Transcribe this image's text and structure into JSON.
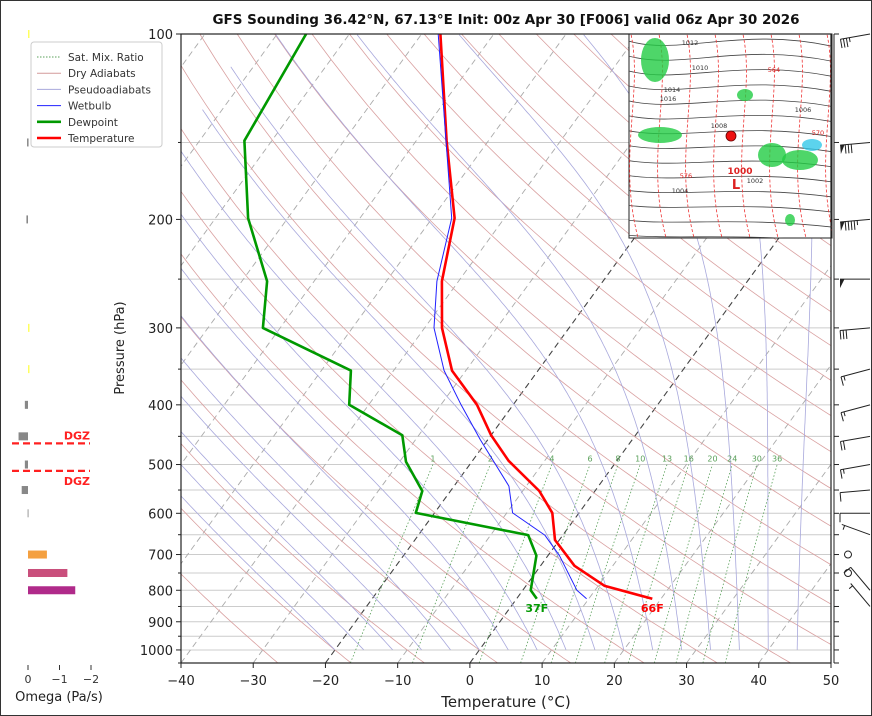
{
  "chart_data": {
    "type": "line",
    "subtype": "skew-t log-p",
    "title": "GFS Sounding 36.42°N, 67.13°E Init: 00z Apr 30 [F006] valid 06z Apr 30 2026",
    "xlabel": "Temperature (°C)",
    "ylabel": "Pressure (hPa)",
    "xlim": [
      -40,
      50
    ],
    "ylim": [
      1050,
      100
    ],
    "x_ticks": [
      "−40",
      "−30",
      "−20",
      "−10",
      "0",
      "10",
      "20",
      "30",
      "40",
      "50"
    ],
    "x_tick_values": [
      -40,
      -30,
      -20,
      -10,
      0,
      10,
      20,
      30,
      40,
      50
    ],
    "y_ticks": [
      100,
      200,
      300,
      400,
      500,
      600,
      700,
      800,
      900,
      1000
    ],
    "legend": {
      "placement": "top-left",
      "entries": [
        {
          "label": "Sat. Mix. Ratio",
          "color": "#5aa05a",
          "style": "dotted"
        },
        {
          "label": "Dry Adiabats",
          "color": "#d49a9a",
          "style": "solid"
        },
        {
          "label": "Pseudoadiabats",
          "color": "#a8a8dc",
          "style": "solid"
        },
        {
          "label": "Wetbulb",
          "color": "#2020ff",
          "style": "solid"
        },
        {
          "label": "Dewpoint",
          "color": "#009900",
          "style": "thick"
        },
        {
          "label": "Temperature",
          "color": "#ff0000",
          "style": "thick"
        }
      ]
    },
    "series": [
      {
        "name": "Temperature",
        "color": "#ff0000",
        "pressure": [
          100,
          149,
          199,
          252,
          300,
          352,
          400,
          448,
          493,
          552,
          599,
          663,
          730,
          787,
          826
        ],
        "values": [
          -67.4,
          -55.8,
          -46.9,
          -42.3,
          -37.6,
          -31.9,
          -25.0,
          -20.0,
          -15.0,
          -7.7,
          -3.7,
          -0.6,
          4.7,
          10.9,
          18.8
        ]
      },
      {
        "name": "Dewpoint",
        "color": "#009900",
        "pressure": [
          100,
          149,
          199,
          252,
          300,
          352,
          400,
          448,
          495,
          552,
          599,
          651,
          703,
          800,
          826
        ],
        "values": [
          -86.0,
          -83.8,
          -75.5,
          -66.5,
          -62.4,
          -45.9,
          -42.7,
          -32.3,
          -29.1,
          -23.9,
          -22.6,
          -4.8,
          -1.6,
          1.1,
          2.8
        ]
      },
      {
        "name": "Wetbulb",
        "color": "#2020ff",
        "pressure": [
          100,
          199,
          252,
          300,
          352,
          400,
          456,
          542,
          599,
          651,
          703,
          800,
          826
        ],
        "values": [
          -67.7,
          -47.3,
          -43.0,
          -38.7,
          -33.0,
          -27.2,
          -21.0,
          -12.4,
          -9.2,
          -2.5,
          1.6,
          7.5,
          9.7
        ]
      }
    ],
    "surface_labels": {
      "temperature": "66F",
      "dewpoint": "37F"
    },
    "mixing_ratio_labels": [
      "1",
      "2",
      "4",
      "6",
      "8",
      "10",
      "13",
      "16",
      "20",
      "24",
      "30",
      "36"
    ],
    "mixing_ratio_values": [
      1,
      2,
      4,
      6,
      8,
      10,
      13,
      16,
      20,
      24,
      30,
      36
    ],
    "wind_barbs": [
      {
        "pressure": 100,
        "speed_kt": 35,
        "direction_deg": 280
      },
      {
        "pressure": 150,
        "speed_kt": 80,
        "direction_deg": 275
      },
      {
        "pressure": 200,
        "speed_kt": 95,
        "direction_deg": 275
      },
      {
        "pressure": 250,
        "speed_kt": 50,
        "direction_deg": 270
      },
      {
        "pressure": 300,
        "speed_kt": 30,
        "direction_deg": 275
      },
      {
        "pressure": 350,
        "speed_kt": 15,
        "direction_deg": 285
      },
      {
        "pressure": 400,
        "speed_kt": 15,
        "direction_deg": 285
      },
      {
        "pressure": 450,
        "speed_kt": 20,
        "direction_deg": 280
      },
      {
        "pressure": 500,
        "speed_kt": 15,
        "direction_deg": 280
      },
      {
        "pressure": 550,
        "speed_kt": 10,
        "direction_deg": 275
      },
      {
        "pressure": 600,
        "speed_kt": 10,
        "direction_deg": 270
      },
      {
        "pressure": 650,
        "speed_kt": 5,
        "direction_deg": 250
      },
      {
        "pressure": 700,
        "speed_kt": 0,
        "direction_deg": 0
      },
      {
        "pressure": 750,
        "speed_kt": 0,
        "direction_deg": 0
      },
      {
        "pressure": 800,
        "speed_kt": 10,
        "direction_deg": 220
      },
      {
        "pressure": 850,
        "speed_kt": 5,
        "direction_deg": 220
      }
    ],
    "omega": {
      "xlabel": "Omega (Pa/s)",
      "x_ticks": [
        "0",
        "−1",
        "−2"
      ],
      "x_tick_values": [
        0,
        -1,
        -2
      ],
      "bars": [
        {
          "pressure": 100,
          "value": -0.02,
          "color": "#ffff60"
        },
        {
          "pressure": 150,
          "value": 0.03,
          "color": "#888888"
        },
        {
          "pressure": 200,
          "value": 0.05,
          "color": "#888888"
        },
        {
          "pressure": 300,
          "value": -0.02,
          "color": "#ffff60"
        },
        {
          "pressure": 350,
          "value": -0.02,
          "color": "#ffff60"
        },
        {
          "pressure": 400,
          "value": 0.1,
          "color": "#888888"
        },
        {
          "pressure": 450,
          "value": 0.3,
          "color": "#888888"
        },
        {
          "pressure": 500,
          "value": 0.1,
          "color": "#888888"
        },
        {
          "pressure": 550,
          "value": 0.2,
          "color": "#888888"
        },
        {
          "pressure": 600,
          "value": 0.02,
          "color": "#bbbbbb"
        },
        {
          "pressure": 700,
          "value": -0.6,
          "color": "#f4a040"
        },
        {
          "pressure": 750,
          "value": -1.25,
          "color": "#c94f7c"
        },
        {
          "pressure": 800,
          "value": -1.5,
          "color": "#b02a8a"
        }
      ],
      "dgz": {
        "label": "DGZ",
        "top_pressure": 462,
        "bottom_pressure": 512,
        "color": "#ff2020"
      }
    }
  },
  "inset_map": {
    "labels": [
      "1012",
      "1010",
      "1014",
      "1016",
      "564",
      "1006",
      "1008",
      "570",
      "576",
      "1000",
      "L",
      "1004",
      "1002"
    ]
  }
}
